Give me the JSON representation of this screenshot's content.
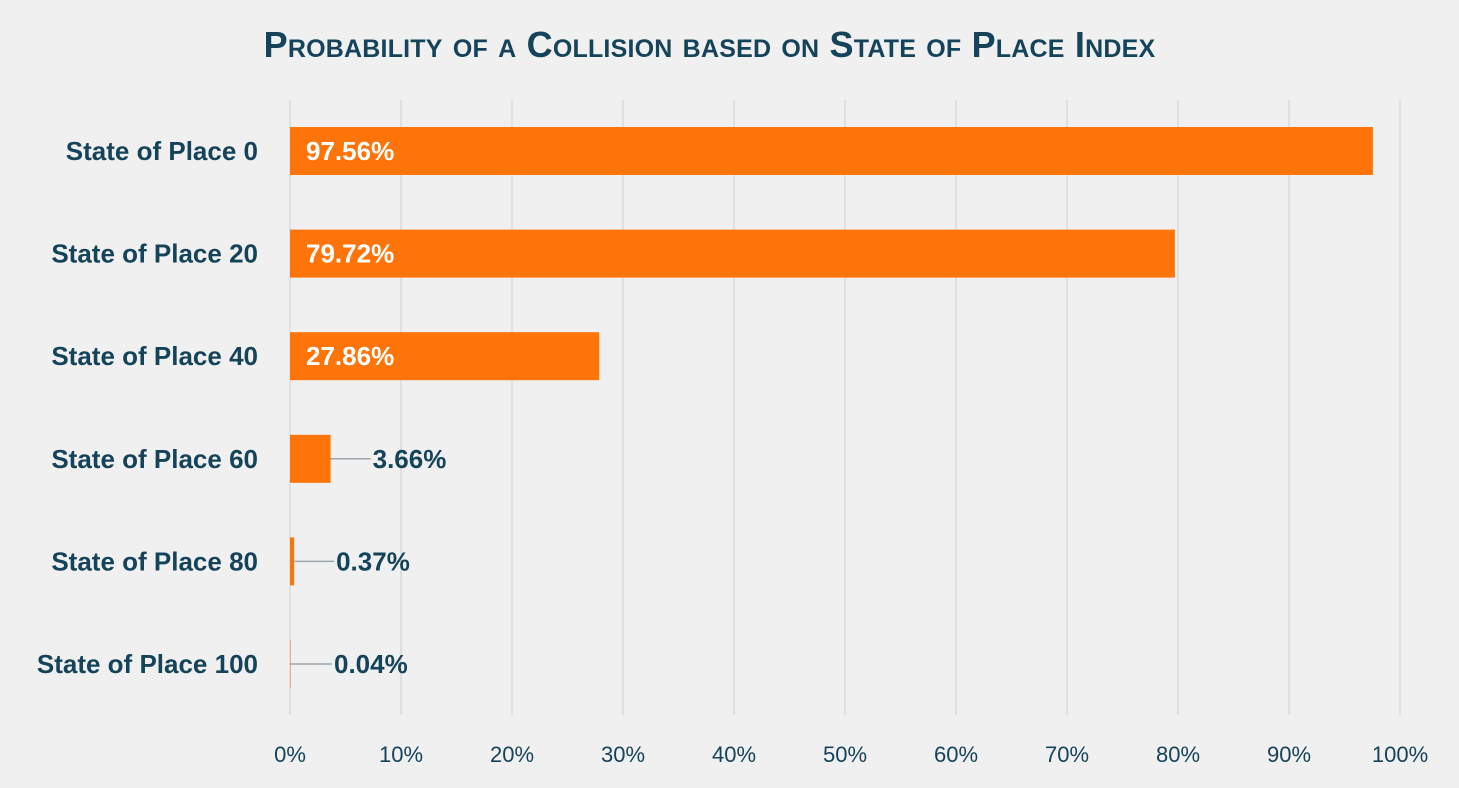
{
  "chart_data": {
    "type": "bar",
    "orientation": "horizontal",
    "title": "Probability of a Collision based on State of Place Index",
    "categories": [
      "State of Place 0",
      "State of Place 20",
      "State of Place 40",
      "State of Place 60",
      "State of Place 80",
      "State of Place 100"
    ],
    "values": [
      97.56,
      79.72,
      27.86,
      3.66,
      0.37,
      0.04
    ],
    "data_labels": [
      "97.56%",
      "79.72%",
      "27.86%",
      "3.66%",
      "0.37%",
      "0.04%"
    ],
    "xlim": [
      0,
      100
    ],
    "x_ticks": [
      0,
      10,
      20,
      30,
      40,
      50,
      60,
      70,
      80,
      90,
      100
    ],
    "x_tick_labels": [
      "0%",
      "10%",
      "20%",
      "30%",
      "40%",
      "50%",
      "60%",
      "70%",
      "80%",
      "90%",
      "100%"
    ],
    "grid": true,
    "legend": "none",
    "colors": {
      "bar": "#ff7408",
      "text": "#15435a",
      "grid": "#d9dbdd",
      "leader": "#9aa5ad",
      "background": "#f0f0f1"
    }
  }
}
